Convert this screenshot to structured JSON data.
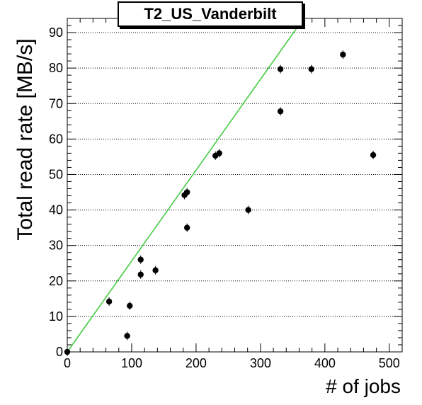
{
  "chart_data": {
    "type": "scatter",
    "title": "T2_US_Vanderbilt",
    "xlabel": "# of jobs",
    "ylabel": "Total read rate [MB/s]",
    "xlim": [
      0,
      520
    ],
    "ylim": [
      0,
      94
    ],
    "xticks": [
      0,
      100,
      200,
      300,
      400,
      500
    ],
    "yticks": [
      0,
      10,
      20,
      30,
      40,
      50,
      60,
      70,
      80,
      90
    ],
    "grid": "horizontal-dotted",
    "colors": {
      "points": "#000000",
      "fit_line": "#44cc44"
    },
    "points": [
      {
        "x": 0,
        "y": 0
      },
      {
        "x": 65,
        "y": 14.2
      },
      {
        "x": 93,
        "y": 4.5
      },
      {
        "x": 97,
        "y": 13
      },
      {
        "x": 114,
        "y": 21.8
      },
      {
        "x": 114,
        "y": 26
      },
      {
        "x": 137,
        "y": 23
      },
      {
        "x": 182,
        "y": 44.2
      },
      {
        "x": 186,
        "y": 45
      },
      {
        "x": 186,
        "y": 35
      },
      {
        "x": 230,
        "y": 55.3
      },
      {
        "x": 236,
        "y": 56
      },
      {
        "x": 281,
        "y": 40
      },
      {
        "x": 331,
        "y": 67.8
      },
      {
        "x": 331,
        "y": 79.7
      },
      {
        "x": 379,
        "y": 79.7
      },
      {
        "x": 428,
        "y": 83.8
      },
      {
        "x": 475,
        "y": 55.5
      }
    ],
    "fit_line": {
      "x": [
        0,
        367
      ],
      "y": [
        0,
        94
      ]
    }
  }
}
